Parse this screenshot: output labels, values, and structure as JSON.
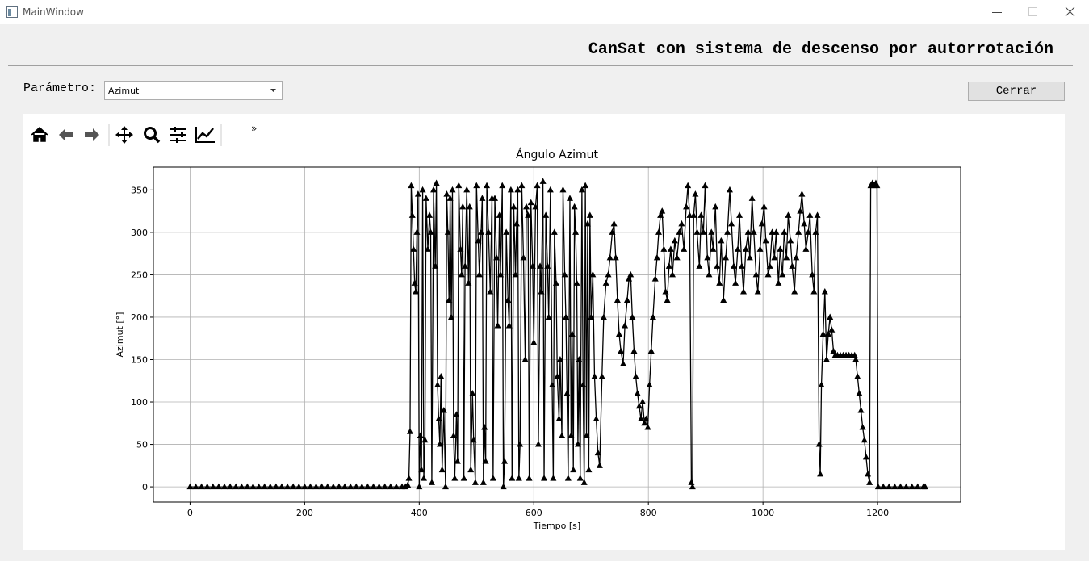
{
  "window": {
    "title": "MainWindow"
  },
  "header": {
    "title": "CanSat con sistema de descenso por autorrotación"
  },
  "controls": {
    "parameter_label": "Parámetro:",
    "parameter_value": "Azimut",
    "close_button": "Cerrar"
  },
  "toolbar": {
    "more": "»"
  },
  "chart_data": {
    "type": "line",
    "title": "Ángulo Azimut",
    "x_label": "Tiempo [s]",
    "y_label": "Azimut [°]",
    "color": "#000000",
    "marker": "triangle",
    "grid": true,
    "xlim": [
      -64,
      1345
    ],
    "ylim": [
      -18,
      377
    ],
    "xticks": [
      0,
      200,
      400,
      600,
      800,
      1000,
      1200
    ],
    "yticks": [
      0,
      50,
      100,
      150,
      200,
      250,
      300,
      350
    ],
    "x": [
      0,
      10,
      20,
      30,
      40,
      50,
      60,
      70,
      80,
      90,
      100,
      110,
      120,
      130,
      140,
      150,
      160,
      170,
      180,
      190,
      200,
      210,
      220,
      230,
      240,
      250,
      260,
      270,
      280,
      290,
      300,
      310,
      320,
      330,
      340,
      350,
      360,
      370,
      376,
      380,
      382,
      384,
      386,
      388,
      390,
      392,
      394,
      396,
      398,
      400,
      402,
      404,
      406,
      408,
      410,
      412,
      415,
      418,
      420,
      422,
      425,
      428,
      430,
      432,
      434,
      436,
      438,
      440,
      443,
      446,
      448,
      450,
      452,
      454,
      456,
      458,
      460,
      462,
      465,
      467,
      469,
      472,
      474,
      476,
      478,
      480,
      483,
      486,
      488,
      490,
      493,
      495,
      498,
      500,
      503,
      505,
      508,
      510,
      512,
      514,
      516,
      518,
      521,
      524,
      527,
      529,
      532,
      535,
      537,
      540,
      542,
      545,
      547,
      549,
      552,
      555,
      557,
      560,
      562,
      565,
      568,
      570,
      572,
      574,
      576,
      579,
      582,
      585,
      587,
      590,
      592,
      595,
      598,
      600,
      603,
      606,
      608,
      611,
      613,
      616,
      618,
      621,
      624,
      626,
      629,
      632,
      634,
      636,
      639,
      641,
      644,
      646,
      649,
      651,
      654,
      656,
      658,
      660,
      663,
      665,
      667,
      669,
      671,
      673,
      675,
      677,
      679,
      681,
      684,
      686,
      688,
      690,
      692,
      694,
      696,
      698,
      700,
      703,
      706,
      709,
      712,
      715,
      719,
      722,
      726,
      730,
      733,
      737,
      740,
      743,
      746,
      749,
      752,
      756,
      759,
      763,
      766,
      769,
      772,
      775,
      778,
      781,
      784,
      787,
      790,
      793,
      796,
      799,
      802,
      805,
      808,
      812,
      815,
      818,
      821,
      824,
      827,
      830,
      833,
      836,
      839,
      842,
      846,
      850,
      854,
      858,
      862,
      866,
      869,
      872,
      875,
      877,
      879,
      882,
      885,
      889,
      892,
      896,
      899,
      903,
      906,
      910,
      913,
      917,
      920,
      924,
      927,
      931,
      935,
      938,
      942,
      945,
      949,
      952,
      956,
      959,
      963,
      966,
      970,
      974,
      977,
      981,
      984,
      988,
      991,
      995,
      998,
      1002,
      1005,
      1009,
      1012,
      1016,
      1020,
      1023,
      1027,
      1030,
      1034,
      1037,
      1041,
      1044,
      1048,
      1051,
      1055,
      1058,
      1062,
      1065,
      1068,
      1072,
      1075,
      1079,
      1082,
      1086,
      1089,
      1092,
      1095,
      1098,
      1100,
      1102,
      1105,
      1108,
      1111,
      1114,
      1117,
      1120,
      1123,
      1126,
      1130,
      1135,
      1140,
      1145,
      1150,
      1155,
      1160,
      1162,
      1165,
      1168,
      1171,
      1174,
      1177,
      1180,
      1183,
      1186,
      1188,
      1191,
      1194,
      1197,
      1199,
      1201,
      1210,
      1220,
      1230,
      1240,
      1250,
      1260,
      1270,
      1280,
      1283
    ],
    "values": [
      0,
      0,
      0,
      0,
      0,
      0,
      0,
      0,
      0,
      0,
      0,
      0,
      0,
      0,
      0,
      0,
      0,
      0,
      0,
      0,
      0,
      0,
      0,
      0,
      0,
      0,
      0,
      0,
      0,
      0,
      0,
      0,
      0,
      0,
      0,
      0,
      0,
      0,
      0,
      2,
      10,
      65,
      355,
      320,
      280,
      240,
      230,
      300,
      345,
      0,
      60,
      20,
      350,
      10,
      55,
      340,
      280,
      320,
      300,
      5,
      350,
      260,
      358,
      120,
      80,
      50,
      130,
      20,
      90,
      0,
      345,
      300,
      220,
      340,
      200,
      350,
      60,
      10,
      85,
      30,
      355,
      280,
      250,
      330,
      10,
      260,
      350,
      240,
      330,
      20,
      110,
      55,
      5,
      355,
      290,
      250,
      300,
      340,
      5,
      70,
      30,
      355,
      300,
      230,
      340,
      10,
      340,
      270,
      190,
      320,
      250,
      355,
      0,
      30,
      300,
      220,
      190,
      350,
      10,
      330,
      250,
      310,
      350,
      10,
      50,
      355,
      270,
      150,
      330,
      320,
      10,
      335,
      260,
      170,
      330,
      355,
      50,
      260,
      230,
      360,
      10,
      320,
      260,
      200,
      350,
      120,
      10,
      300,
      240,
      130,
      80,
      150,
      60,
      350,
      250,
      200,
      110,
      10,
      340,
      60,
      180,
      20,
      330,
      300,
      240,
      50,
      150,
      10,
      350,
      120,
      5,
      355,
      60,
      310,
      20,
      320,
      200,
      250,
      130,
      80,
      40,
      25,
      130,
      200,
      240,
      250,
      270,
      300,
      310,
      270,
      220,
      180,
      160,
      145,
      190,
      220,
      245,
      250,
      200,
      160,
      130,
      110,
      95,
      80,
      100,
      75,
      80,
      70,
      120,
      160,
      200,
      245,
      270,
      300,
      320,
      325,
      280,
      230,
      220,
      260,
      280,
      250,
      290,
      270,
      300,
      310,
      280,
      330,
      355,
      320,
      5,
      0,
      320,
      345,
      300,
      260,
      320,
      300,
      355,
      270,
      250,
      300,
      280,
      330,
      260,
      240,
      290,
      220,
      270,
      300,
      350,
      310,
      260,
      240,
      280,
      320,
      260,
      230,
      280,
      300,
      270,
      340,
      300,
      250,
      230,
      280,
      310,
      330,
      290,
      250,
      260,
      300,
      270,
      300,
      240,
      280,
      250,
      300,
      270,
      320,
      290,
      260,
      230,
      270,
      300,
      325,
      345,
      310,
      280,
      300,
      320,
      250,
      230,
      300,
      320,
      50,
      15,
      120,
      180,
      230,
      150,
      180,
      200,
      185,
      160,
      155,
      155,
      155,
      155,
      155,
      155,
      155,
      155,
      150,
      130,
      110,
      90,
      70,
      55,
      35,
      15,
      5,
      355,
      358,
      355,
      358,
      355,
      0,
      0,
      0,
      0,
      0,
      0,
      0,
      0,
      0,
      0
    ]
  }
}
